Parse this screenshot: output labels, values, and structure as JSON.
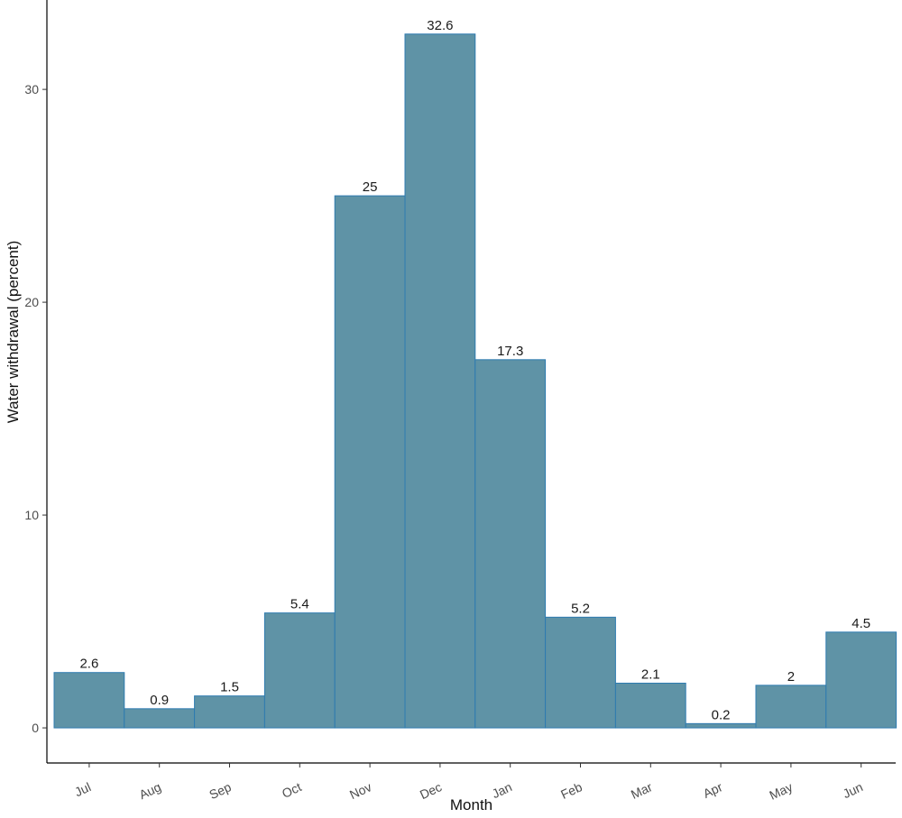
{
  "chart_data": {
    "type": "bar",
    "xlabel": "Month",
    "ylabel": "Water withdrawal (percent)",
    "categories": [
      "Jul",
      "Aug",
      "Sep",
      "Oct",
      "Nov",
      "Dec",
      "Jan",
      "Feb",
      "Mar",
      "Apr",
      "May",
      "Jun"
    ],
    "values": [
      2.6,
      0.9,
      1.5,
      5.4,
      25,
      32.6,
      17.3,
      5.2,
      2.1,
      0.2,
      2,
      4.5
    ],
    "data_labels": [
      "2.6",
      "0.9",
      "1.5",
      "5.4",
      "25",
      "32.6",
      "17.3",
      "5.2",
      "2.1",
      "0.2",
      "2",
      "4.5"
    ],
    "yticks": [
      0,
      10,
      20,
      30
    ],
    "ylim": [
      -1.65,
      34.2
    ],
    "grid": false,
    "legend": "none",
    "colors": {
      "bar_fill": "#5f93a6",
      "bar_stroke": "#2e7bb0"
    }
  }
}
